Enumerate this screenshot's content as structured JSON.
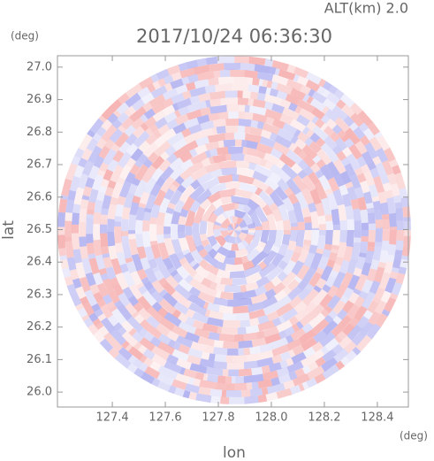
{
  "chart_data": {
    "type": "ppi",
    "title": "2017/10/24 06:36:30",
    "subtitle": "ALT(km) 2.0",
    "xlabel": "lon",
    "ylabel": "lat",
    "xunit": "(deg)",
    "yunit": "(deg)",
    "xlim": [
      127.193,
      128.517
    ],
    "ylim": [
      25.954,
      27.035
    ],
    "xticks": [
      127.4,
      127.6,
      127.8,
      {
        "value": 128,
        "label": "128.0"
      },
      128.2,
      128.4
    ],
    "yticks": [
      {
        "value": 26,
        "label": "26.0"
      },
      26.1,
      26.2,
      26.3,
      26.4,
      26.5,
      26.6,
      26.7,
      26.8,
      26.9,
      {
        "value": 27,
        "label": "27.0"
      }
    ]
  }
}
